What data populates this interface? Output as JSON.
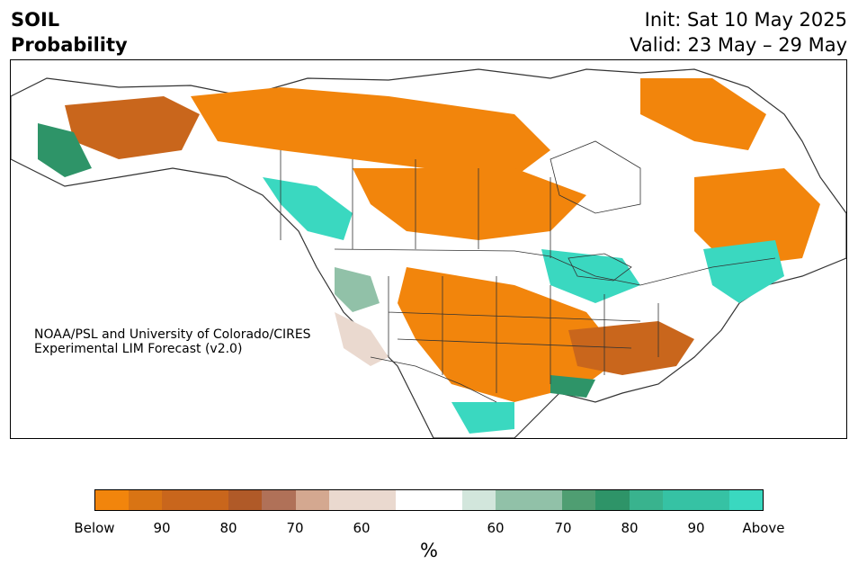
{
  "title": {
    "variable": "SOIL",
    "quantity": "Probability",
    "init": "Init: Sat 10 May 2025",
    "valid": "Valid: 23 May – 29 May"
  },
  "credit": {
    "line1": "NOAA/PSL and University of Colorado/CIRES",
    "line2": "Experimental LIM Forecast (v2.0)"
  },
  "colorbar": {
    "unit": "%",
    "colors": [
      "#f2850c",
      "#d97414",
      "#c9661c",
      "#c9661c",
      "#b05a28",
      "#b07158",
      "#d4a890",
      "#ead9cf",
      "#ead9cf",
      "#ffffff",
      "#ffffff",
      "#d2e6dc",
      "#91c1a8",
      "#91c1a8",
      "#4f9e72",
      "#2e9468",
      "#39b38e",
      "#36c2a4",
      "#36c2a4",
      "#3ad8c0"
    ],
    "tick_labels": [
      "Below",
      "90",
      "80",
      "70",
      "60",
      "60",
      "70",
      "80",
      "90",
      "Above"
    ]
  },
  "map_colors": {
    "below_strong": "#f2850c",
    "below_mid": "#c9661c",
    "below_weak": "#ead9cf",
    "above_weak": "#91c1a8",
    "above_mid": "#2e9468",
    "above_strong": "#3ad8c0",
    "outline": "#333333"
  }
}
